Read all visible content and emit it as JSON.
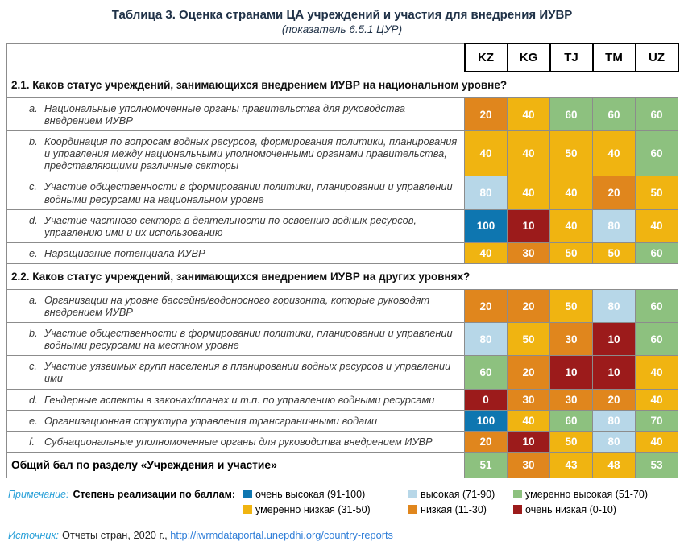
{
  "title": "Таблица 3. Оценка странами ЦА учреждений и участия для внедрения ИУВР",
  "subtitle": "(показатель 6.5.1 ЦУР)",
  "table": {
    "columns": [
      "KZ",
      "KG",
      "TJ",
      "TM",
      "UZ"
    ],
    "sections": [
      {
        "header": "2.1. Каков статус учреждений, занимающихся внедрением ИУВР на национальном уровне?",
        "rows": [
          {
            "prefix": "a.",
            "label": "Национальные уполномоченные органы правительства для руководства внедрением ИУВР",
            "values": [
              20,
              40,
              60,
              60,
              60
            ]
          },
          {
            "prefix": "b.",
            "label": "Координация по вопросам водных ресурсов, формирования политики, планирования и управления между национальными уполномоченными органами правительства, представляющими различные секторы",
            "values": [
              40,
              40,
              50,
              40,
              60
            ]
          },
          {
            "prefix": "c.",
            "label": "Участие общественности в формировании политики, планировании и управлении водными ресурсами на национальном уровне",
            "values": [
              80,
              40,
              40,
              20,
              50
            ]
          },
          {
            "prefix": "d.",
            "label": "Участие частного сектора в деятельности по освоению водных ресурсов, управлению ими и их использованию",
            "values": [
              100,
              10,
              40,
              80,
              40
            ]
          },
          {
            "prefix": "e.",
            "label": "Наращивание потенциала ИУВР",
            "values": [
              40,
              30,
              50,
              50,
              60
            ]
          }
        ]
      },
      {
        "header": "2.2. Каков статус учреждений, занимающихся внедрением ИУВР на других уровнях?",
        "rows": [
          {
            "prefix": "a.",
            "label": "Организации на уровне бассейна/водоносного горизонта, которые руководят внедрением ИУВР",
            "values": [
              20,
              20,
              50,
              80,
              60
            ]
          },
          {
            "prefix": "b.",
            "label": "Участие общественности в формировании политики, планировании и управлении водными ресурсами на местном уровне",
            "values": [
              80,
              50,
              30,
              10,
              60
            ]
          },
          {
            "prefix": "c.",
            "label": "Участие уязвимых групп населения в планировании водных ресурсов и управлении ими",
            "values": [
              60,
              20,
              10,
              10,
              40
            ]
          },
          {
            "prefix": "d.",
            "label": "Гендерные аспекты в законах/планах и т.п. по управлению водными ресурсами",
            "values": [
              0,
              30,
              30,
              20,
              40
            ]
          },
          {
            "prefix": "e.",
            "label": "Организационная структура управления трансграничными водами",
            "values": [
              100,
              40,
              60,
              80,
              70
            ]
          },
          {
            "prefix": "f.",
            "label": "Субнациональные уполномоченные органы для руководства внедрением ИУВР",
            "values": [
              20,
              10,
              50,
              80,
              40
            ]
          }
        ]
      }
    ],
    "total": {
      "label": "Общий бал по разделу «Учреждения и участие»",
      "values": [
        51,
        30,
        43,
        48,
        53
      ]
    }
  },
  "legend": {
    "note_label": "Примечание:",
    "note_title": "Степень реализации по баллам:",
    "items": [
      {
        "label": "очень высокая (91-100)",
        "color": "#0e76b0",
        "min": 91,
        "max": 100
      },
      {
        "label": "высокая (71-90)",
        "color": "#b7d7e8",
        "min": 71,
        "max": 90
      },
      {
        "label": "умеренно высокая (51-70)",
        "color": "#8dc17f",
        "min": 51,
        "max": 70
      },
      {
        "label": "умеренно низкая (31-50)",
        "color": "#f0b411",
        "min": 31,
        "max": 50
      },
      {
        "label": "низкая (11-30)",
        "color": "#e0861d",
        "min": 11,
        "max": 30
      },
      {
        "label": "очень низкая (0-10)",
        "color": "#9c1b1b",
        "min": 0,
        "max": 10
      }
    ],
    "score_text_color": "#ffffff"
  },
  "source": {
    "label": "Источник:",
    "text": "Отчеты стран, 2020 г., ",
    "link": "http://iwrmdataportal.unepdhi.org/country-reports"
  }
}
